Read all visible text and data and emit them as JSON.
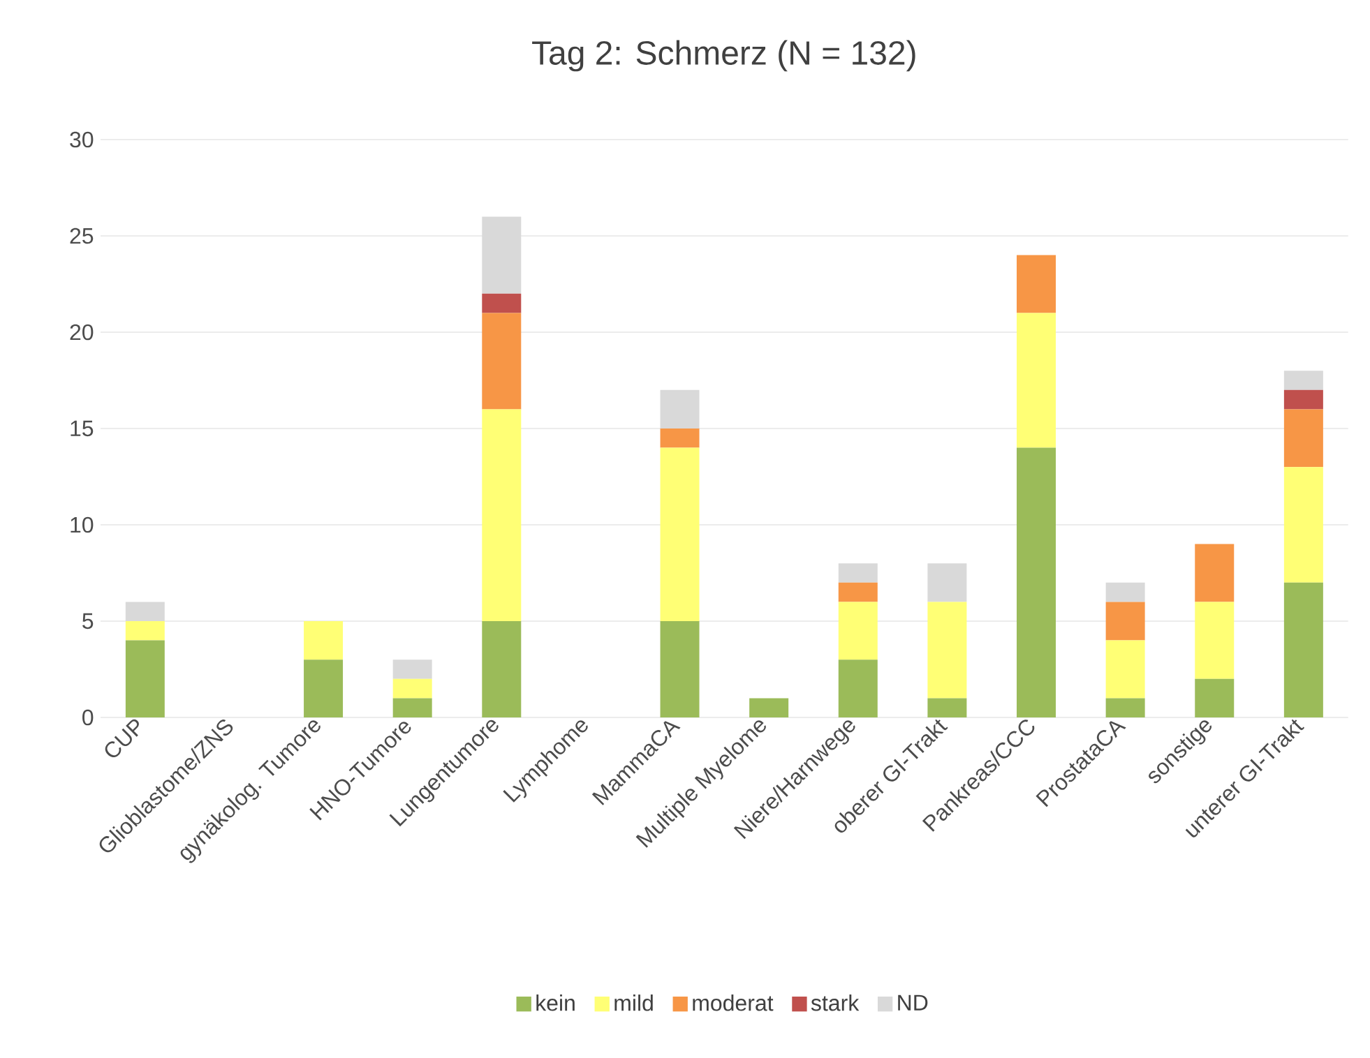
{
  "chart_data": {
    "type": "bar",
    "title": "Tag 2: Schmerz (N = 132)",
    "stacked": true,
    "categories": [
      "CUP",
      "Glioblastome/ZNS",
      "gynäkolog. Tumore",
      "HNO-Tumore",
      "Lungentumore",
      "Lymphome",
      "MammaCA",
      "Multiple Myelome",
      "Niere/Harnwege",
      "oberer GI-Trakt",
      "Pankreas/CCC",
      "ProstataCA",
      "sonstige",
      "unterer GI-Trakt"
    ],
    "series": [
      {
        "name": "kein",
        "color": "#9bbb59",
        "values": [
          4,
          0,
          3,
          1,
          5,
          0,
          5,
          1,
          3,
          1,
          14,
          1,
          2,
          7
        ]
      },
      {
        "name": "mild",
        "color": "#ffff75",
        "values": [
          1,
          0,
          2,
          1,
          11,
          0,
          9,
          0,
          3,
          5,
          7,
          3,
          4,
          6
        ]
      },
      {
        "name": "moderat",
        "color": "#f79646",
        "values": [
          0,
          0,
          0,
          0,
          5,
          0,
          1,
          0,
          1,
          0,
          3,
          2,
          3,
          3
        ]
      },
      {
        "name": "stark",
        "color": "#c0504d",
        "values": [
          0,
          0,
          0,
          0,
          1,
          0,
          0,
          0,
          0,
          0,
          0,
          0,
          0,
          1
        ]
      },
      {
        "name": "ND",
        "color": "#d9d9d9",
        "values": [
          1,
          0,
          0,
          1,
          4,
          0,
          2,
          0,
          1,
          2,
          0,
          1,
          0,
          1
        ]
      }
    ],
    "ylim": [
      0,
      30
    ],
    "yticks": [
      0,
      5,
      10,
      15,
      20,
      25,
      30
    ],
    "grid": "y",
    "legend": "bottom"
  }
}
